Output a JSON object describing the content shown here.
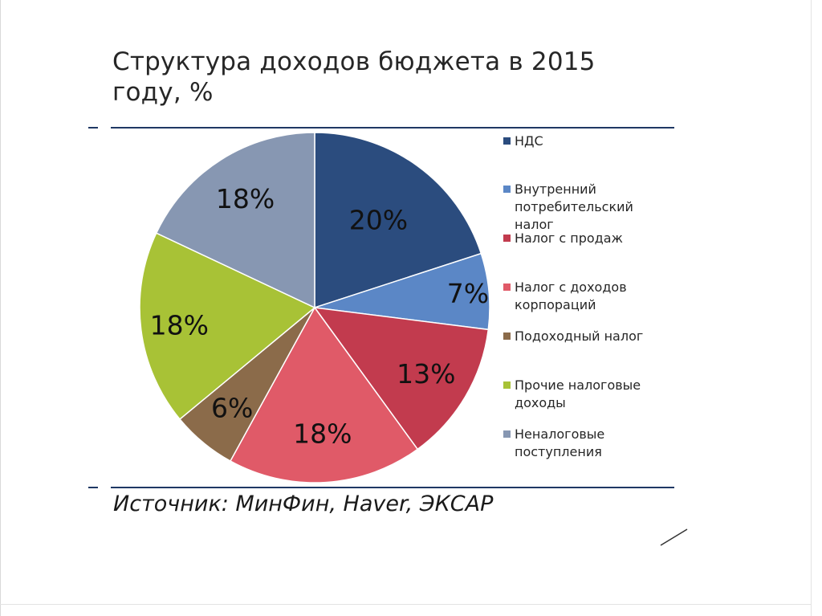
{
  "title": "Структура доходов бюджета в 2015 году, %",
  "source": "Источник: МинФин, Haver, ЭКСАР",
  "colors": {
    "rule": "#1f3864",
    "slice_border": "#ffffff"
  },
  "chart_data": {
    "type": "pie",
    "title": "Структура доходов бюджета в 2015 году, %",
    "unit": "%",
    "legend_position": "right",
    "slices": [
      {
        "name": "НДС",
        "value": 20,
        "label": "20%",
        "color": "#2b4c7e"
      },
      {
        "name": "Внутренний потребительский налог",
        "value": 7,
        "label": "7%",
        "color": "#5b87c6"
      },
      {
        "name": "Налог с продаж",
        "value": 13,
        "label": "13%",
        "color": "#c23b4e"
      },
      {
        "name": "Налог с доходов корпораций",
        "value": 18,
        "label": "18%",
        "color": "#e05a68"
      },
      {
        "name": "Подоходный налог",
        "value": 6,
        "label": "6%",
        "color": "#8b6b4a"
      },
      {
        "name": "Прочие налоговые доходы",
        "value": 18,
        "label": "18%",
        "color": "#a8c236"
      },
      {
        "name": "Неналоговые поступления",
        "value": 18,
        "label": "18%",
        "color": "#8797b2"
      }
    ]
  }
}
